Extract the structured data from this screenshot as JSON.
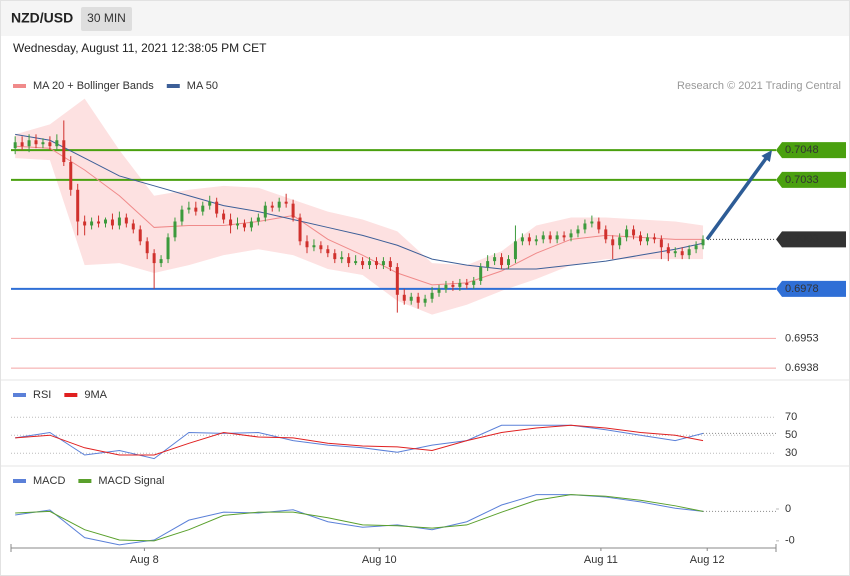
{
  "header": {
    "symbol": "NZD/USD",
    "timeframe": "30 MIN",
    "datetime": "Wednesday, August 11, 2021 12:38:05 PM CET"
  },
  "credit": "Research © 2021 Trading Central",
  "chart_data": [
    {
      "type": "candlestick",
      "xlim": [
        -0.6,
        109.5
      ],
      "ylim": [
        0.6933,
        0.7092
      ],
      "up_color": "#3c9a3c",
      "down_color": "#d0312d",
      "band_color": "#fde1e1",
      "legend": "top-left",
      "open": [
        0.7049,
        0.7052,
        0.705,
        0.7053,
        0.7051,
        0.7052,
        0.705,
        0.7053,
        0.7042,
        0.7028,
        0.7012,
        0.701,
        0.7012,
        0.7011,
        0.7013,
        0.701,
        0.7014,
        0.7011,
        0.7008,
        0.7002,
        0.6996,
        0.6991,
        0.6993,
        0.7004,
        0.7012,
        0.7018,
        0.7019,
        0.7017,
        0.702,
        0.7022,
        0.7016,
        0.7013,
        0.701,
        0.7011,
        0.7009,
        0.7012,
        0.7014,
        0.702,
        0.7019,
        0.7022,
        0.7021,
        0.7014,
        0.7002,
        0.6999,
        0.7,
        0.6998,
        0.6996,
        0.6993,
        0.6994,
        0.6991,
        0.6992,
        0.699,
        0.6992,
        0.699,
        0.6992,
        0.6989,
        0.6975,
        0.6972,
        0.6974,
        0.6971,
        0.6973,
        0.6976,
        0.6978,
        0.698,
        0.6979,
        0.6981,
        0.698,
        0.6982,
        0.6989,
        0.6992,
        0.6994,
        0.699,
        0.6993,
        0.7002,
        0.7004,
        0.7002,
        0.7003,
        0.7005,
        0.7003,
        0.7005,
        0.7004,
        0.7006,
        0.7008,
        0.7011,
        0.7012,
        0.7008,
        0.7003,
        0.7,
        0.7004,
        0.7008,
        0.7005,
        0.7002,
        0.7004,
        0.7003,
        0.6999,
        0.6996,
        0.6997,
        0.6995,
        0.6998,
        0.7
      ],
      "high": [
        0.7055,
        0.7055,
        0.7056,
        0.7056,
        0.7054,
        0.7055,
        0.7056,
        0.7063,
        0.7045,
        0.7031,
        0.7015,
        0.7014,
        0.7015,
        0.7014,
        0.7016,
        0.7017,
        0.7016,
        0.7013,
        0.701,
        0.7004,
        0.6998,
        0.6995,
        0.7006,
        0.7014,
        0.702,
        0.7022,
        0.7022,
        0.7022,
        0.7025,
        0.7024,
        0.7018,
        0.7016,
        0.7014,
        0.7013,
        0.7014,
        0.7016,
        0.7022,
        0.7022,
        0.7024,
        0.7026,
        0.7023,
        0.7016,
        0.7005,
        0.7003,
        0.7002,
        0.7,
        0.6998,
        0.6997,
        0.6996,
        0.6995,
        0.6994,
        0.6994,
        0.6994,
        0.6994,
        0.6994,
        0.6991,
        0.6978,
        0.6976,
        0.6976,
        0.6975,
        0.6979,
        0.698,
        0.6982,
        0.6982,
        0.6983,
        0.6983,
        0.6984,
        0.6991,
        0.6995,
        0.6996,
        0.6996,
        0.6995,
        0.701,
        0.7006,
        0.7006,
        0.7005,
        0.7007,
        0.7007,
        0.7007,
        0.7007,
        0.7008,
        0.701,
        0.7013,
        0.7015,
        0.7014,
        0.701,
        0.7005,
        0.7006,
        0.701,
        0.701,
        0.7007,
        0.7006,
        0.7006,
        0.7005,
        0.7001,
        0.6999,
        0.6999,
        0.7,
        0.7002,
        0.7005
      ],
      "low": [
        0.7046,
        0.7048,
        0.7047,
        0.7049,
        0.7049,
        0.7048,
        0.7048,
        0.704,
        0.7025,
        0.7005,
        0.7005,
        0.7008,
        0.7009,
        0.7009,
        0.7008,
        0.7008,
        0.7009,
        0.7006,
        0.7,
        0.6993,
        0.6978,
        0.6989,
        0.6991,
        0.7002,
        0.701,
        0.7016,
        0.7015,
        0.7015,
        0.7018,
        0.7014,
        0.7011,
        0.7006,
        0.7008,
        0.7007,
        0.7007,
        0.701,
        0.7012,
        0.7017,
        0.7017,
        0.7019,
        0.7012,
        0.7,
        0.6996,
        0.6997,
        0.6996,
        0.6994,
        0.6991,
        0.6991,
        0.6989,
        0.699,
        0.6988,
        0.6988,
        0.6988,
        0.6988,
        0.6987,
        0.6966,
        0.697,
        0.697,
        0.6968,
        0.6969,
        0.6971,
        0.6974,
        0.6976,
        0.6977,
        0.6977,
        0.6978,
        0.6978,
        0.698,
        0.6987,
        0.699,
        0.6988,
        0.6988,
        0.6991,
        0.7,
        0.7,
        0.7,
        0.7001,
        0.7001,
        0.7001,
        0.7002,
        0.7002,
        0.7004,
        0.7006,
        0.7009,
        0.7006,
        0.7001,
        0.6993,
        0.6998,
        0.7002,
        0.7003,
        0.7,
        0.7,
        0.7001,
        0.6993,
        0.6992,
        0.6994,
        0.6993,
        0.6993,
        0.6996,
        0.6998
      ],
      "close": [
        0.7052,
        0.705,
        0.7053,
        0.7051,
        0.7052,
        0.705,
        0.7053,
        0.7042,
        0.7028,
        0.7012,
        0.701,
        0.7012,
        0.7011,
        0.7013,
        0.701,
        0.7014,
        0.7011,
        0.7008,
        0.7002,
        0.6996,
        0.6991,
        0.6993,
        0.7004,
        0.7012,
        0.7018,
        0.7019,
        0.7017,
        0.702,
        0.7022,
        0.7016,
        0.7013,
        0.701,
        0.7011,
        0.7009,
        0.7012,
        0.7014,
        0.702,
        0.7019,
        0.7022,
        0.7021,
        0.7014,
        0.7002,
        0.6999,
        0.7,
        0.6998,
        0.6996,
        0.6993,
        0.6994,
        0.6991,
        0.6992,
        0.699,
        0.6992,
        0.699,
        0.6992,
        0.6989,
        0.6975,
        0.6972,
        0.6974,
        0.6971,
        0.6973,
        0.6976,
        0.6978,
        0.698,
        0.6979,
        0.6981,
        0.698,
        0.6982,
        0.6989,
        0.6992,
        0.6994,
        0.699,
        0.6993,
        0.7002,
        0.7004,
        0.7002,
        0.7003,
        0.7005,
        0.7003,
        0.7005,
        0.7004,
        0.7006,
        0.7008,
        0.7011,
        0.7012,
        0.7008,
        0.7003,
        0.7,
        0.7004,
        0.7008,
        0.7005,
        0.7002,
        0.7004,
        0.7003,
        0.6999,
        0.6996,
        0.6997,
        0.6995,
        0.6998,
        0.7,
        0.7003
      ],
      "series": [
        {
          "name": "MA 20 + Bollinger Bands",
          "color": "#f08a8a",
          "x": [
            0,
            5,
            10,
            15,
            20,
            25,
            30,
            35,
            40,
            45,
            50,
            55,
            60,
            65,
            70,
            75,
            80,
            85,
            90,
            95,
            99
          ],
          "values": [
            0.705,
            0.7049,
            0.7038,
            0.7025,
            0.7009,
            0.701,
            0.701,
            0.7012,
            0.7015,
            0.7003,
            0.6995,
            0.6986,
            0.698,
            0.6981,
            0.6987,
            0.6996,
            0.7003,
            0.7005,
            0.7004,
            0.7003,
            0.7003
          ],
          "upper": [
            0.7056,
            0.7061,
            0.7074,
            0.7048,
            0.7025,
            0.7028,
            0.703,
            0.7029,
            0.7023,
            0.7017,
            0.7013,
            0.7007,
            0.6991,
            0.699,
            0.6997,
            0.701,
            0.7014,
            0.7014,
            0.7013,
            0.7012,
            0.701
          ],
          "lower": [
            0.7044,
            0.7043,
            0.699,
            0.6991,
            0.6986,
            0.699,
            0.6995,
            0.6998,
            0.6995,
            0.6988,
            0.6985,
            0.6972,
            0.6965,
            0.697,
            0.6977,
            0.6983,
            0.699,
            0.6993,
            0.6993,
            0.6993,
            0.6993
          ]
        },
        {
          "name": "MA 50",
          "color": "#3d5f98",
          "x": [
            0,
            5,
            10,
            15,
            20,
            25,
            30,
            35,
            40,
            45,
            50,
            55,
            60,
            65,
            70,
            75,
            80,
            85,
            90,
            95,
            99
          ],
          "values": [
            0.7056,
            0.7053,
            0.7044,
            0.7035,
            0.703,
            0.7025,
            0.702,
            0.7017,
            0.7013,
            0.7009,
            0.7005,
            0.7,
            0.6993,
            0.699,
            0.6988,
            0.6988,
            0.699,
            0.6992,
            0.6995,
            0.6998,
            0.7001
          ]
        }
      ],
      "levels": [
        {
          "value": 0.7048,
          "color": "#4aa00f",
          "line": "solid",
          "box": true
        },
        {
          "value": 0.7033,
          "color": "#4aa00f",
          "line": "solid",
          "box": true
        },
        {
          "value": 0.7003,
          "color": "#333333",
          "line": "dotted",
          "box": true
        },
        {
          "value": 0.6978,
          "color": "#2f6fd6",
          "line": "solid",
          "box": true
        },
        {
          "value": 0.6953,
          "color": "#e02020",
          "line": "solid",
          "box": false
        },
        {
          "value": 0.6938,
          "color": "#e02020",
          "line": "solid",
          "box": false
        }
      ]
    },
    {
      "type": "line",
      "xlim": [
        -0.6,
        109.5
      ],
      "ylim": [
        18,
        108
      ],
      "yticks": [
        70,
        50,
        30
      ],
      "grid": true,
      "legend": "top-left",
      "series": [
        {
          "name": "RSI",
          "color": "#5b80d8",
          "x": [
            0,
            5,
            10,
            15,
            20,
            25,
            30,
            35,
            40,
            45,
            50,
            55,
            60,
            65,
            70,
            75,
            80,
            85,
            90,
            95,
            99
          ],
          "values": [
            47,
            53,
            28,
            33,
            24,
            53,
            52,
            53,
            44,
            39,
            36,
            31,
            39,
            44,
            61,
            61,
            61,
            56,
            50,
            44,
            52
          ]
        },
        {
          "name": "9MA",
          "color": "#e02020",
          "x": [
            0,
            5,
            10,
            15,
            20,
            25,
            30,
            35,
            40,
            45,
            50,
            55,
            60,
            65,
            70,
            75,
            80,
            85,
            90,
            95,
            99
          ],
          "values": [
            47,
            50,
            36,
            28,
            28,
            41,
            53,
            48,
            47,
            41,
            38,
            37,
            33,
            44,
            53,
            58,
            61,
            58,
            53,
            50,
            44
          ]
        }
      ]
    },
    {
      "type": "line",
      "xlim": [
        -0.6,
        109.5
      ],
      "ylim": [
        -0.00049,
        0.00049
      ],
      "yticks": [
        0,
        {
          "value": -0.0004,
          "label": "-0"
        }
      ],
      "grid": false,
      "legend": "top-left",
      "xticks": [
        {
          "value": 18.6,
          "label": "Aug 8"
        },
        {
          "value": 52.4,
          "label": "Aug 10"
        },
        {
          "value": 84.3,
          "label": "Aug 11"
        },
        {
          "value": 99.6,
          "label": "Aug 12"
        }
      ],
      "series": [
        {
          "name": "MACD",
          "color": "#5b80d8",
          "x": [
            0,
            5,
            10,
            15,
            20,
            25,
            30,
            35,
            40,
            45,
            50,
            55,
            60,
            65,
            70,
            75,
            80,
            85,
            90,
            95,
            99
          ],
          "values": [
            -7.5e-05,
            -1.25e-05,
            -0.00036,
            -0.00045,
            -0.00039,
            -0.00014,
            -4e-05,
            -5e-05,
            -1e-05,
            -0.00016,
            -0.00023,
            -0.0002,
            -0.00026,
            -0.00016,
            5e-05,
            0.00018,
            0.00018,
            0.00015,
            9e-05,
            1e-05,
            -3e-05
          ]
        },
        {
          "name": "MACD Signal",
          "color": "#5aa02c",
          "x": [
            0,
            5,
            10,
            15,
            20,
            25,
            30,
            35,
            40,
            45,
            50,
            55,
            60,
            65,
            70,
            75,
            80,
            85,
            90,
            95,
            99
          ],
          "values": [
            -5e-05,
            -3e-05,
            -0.00026,
            -0.00039,
            -0.0004,
            -0.00026,
            -8e-05,
            -4e-05,
            -4e-05,
            -0.00011,
            -0.0002,
            -0.00021,
            -0.00024,
            -0.0002,
            -4e-05,
            0.00011,
            0.00018,
            0.00016,
            0.00011,
            4e-05,
            -3e-05
          ]
        }
      ]
    }
  ]
}
